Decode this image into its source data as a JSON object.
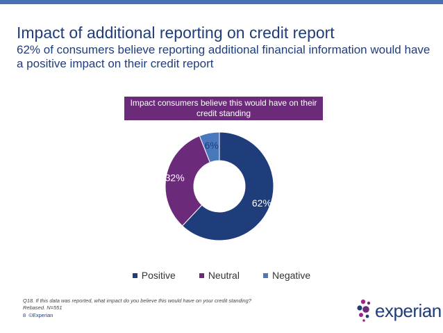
{
  "title": "Impact of additional reporting on credit report",
  "subtitle": "62% of consumers believe reporting additional financial information would have a positive impact on their credit report",
  "chart_data": {
    "type": "pie",
    "title": "Impact consumers believe this would have on their credit standing",
    "categories": [
      "Positive",
      "Neutral",
      "Negative"
    ],
    "values": [
      62,
      32,
      6
    ],
    "labels": [
      "62%",
      "32%",
      "6%"
    ],
    "colors": [
      "#1f3d7a",
      "#6c2a7a",
      "#4a78bd"
    ],
    "legend_position": "bottom"
  },
  "footnote": {
    "question": "Q18. If this data was reported, what impact do you believe this would have on your credit standing?",
    "base": "Rebased. N=551"
  },
  "footer": {
    "page_number": "8",
    "copyright": "©Experian"
  },
  "logo": {
    "text": "experian",
    "tm": "™"
  }
}
